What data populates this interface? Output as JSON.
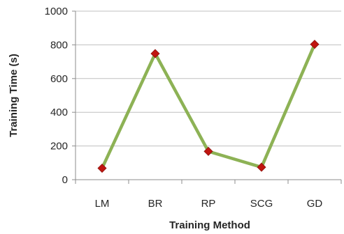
{
  "chart_data": {
    "type": "line",
    "title": "",
    "xlabel": "Training Method",
    "ylabel": "Training Time (s)",
    "categories": [
      "LM",
      "BR",
      "RP",
      "SCG",
      "GD"
    ],
    "series": [
      {
        "values": [
          68,
          748,
          168,
          74,
          803
        ]
      }
    ],
    "ylim": [
      0,
      1000
    ],
    "yticks": [
      0,
      200,
      400,
      600,
      800,
      1000
    ],
    "grid": true,
    "legend": "none"
  },
  "colors": {
    "line": "#8DB255",
    "marker": "#C0150F",
    "marker_border": "#8E1410",
    "grid": "#BFBFBF",
    "axis": "#8C8C8C",
    "text": "#262626"
  }
}
